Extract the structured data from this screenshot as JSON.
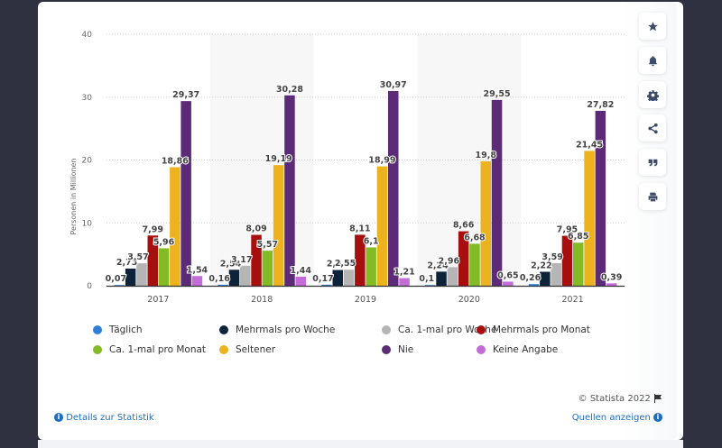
{
  "chart_data": {
    "type": "bar",
    "title": "",
    "xlabel": "",
    "ylabel": "Personen in Millionen",
    "ylim": [
      0,
      40
    ],
    "yticks": [
      0,
      10,
      20,
      30,
      40
    ],
    "grid": true,
    "legend_position": "bottom",
    "categories": [
      "2017",
      "2018",
      "2019",
      "2020",
      "2021"
    ],
    "series": [
      {
        "name": "Täglich",
        "color": "#2f7ed8",
        "values": [
          0.07,
          0.16,
          0.17,
          0.1,
          0.26
        ],
        "labels": [
          "0,07",
          "0,16",
          "0,17",
          "0,1",
          "0,26"
        ]
      },
      {
        "name": "Mehrmals pro Woche",
        "color": "#0d233a",
        "values": [
          2.73,
          2.54,
          2.5,
          2.24,
          2.22
        ],
        "labels": [
          "2,73",
          "2,54",
          "2,5",
          "2,24",
          "2,22"
        ]
      },
      {
        "name": "Ca. 1-mal pro Woche",
        "color": "#b5b5b5",
        "values": [
          3.57,
          3.17,
          2.55,
          2.96,
          3.59
        ],
        "labels": [
          "3,57",
          "3,17",
          "2,55",
          "2,96",
          "3,59"
        ]
      },
      {
        "name": "Mehrmals pro Monat",
        "color": "#a70f0f",
        "values": [
          7.99,
          8.09,
          8.11,
          8.66,
          7.95
        ],
        "labels": [
          "7,99",
          "8,09",
          "8,11",
          "8,66",
          "7,95"
        ]
      },
      {
        "name": "Ca. 1-mal pro Monat",
        "color": "#83bb24",
        "values": [
          5.96,
          5.57,
          6.1,
          6.68,
          6.85
        ],
        "labels": [
          "5,96",
          "5,57",
          "6,1",
          "6,68",
          "6,85"
        ]
      },
      {
        "name": "Seltener",
        "color": "#ecb31f",
        "values": [
          18.86,
          19.19,
          18.99,
          19.8,
          21.45
        ],
        "labels": [
          "18,86",
          "19,19",
          "18,99",
          "19,8",
          "21,45"
        ]
      },
      {
        "name": "Nie",
        "color": "#5c2a76",
        "values": [
          29.37,
          30.28,
          30.97,
          29.55,
          27.82
        ],
        "labels": [
          "29,37",
          "30,28",
          "30,97",
          "29,55",
          "27,82"
        ]
      },
      {
        "name": "Keine Angabe",
        "color": "#c36cd8",
        "values": [
          1.54,
          1.44,
          1.21,
          0.65,
          0.39
        ],
        "labels": [
          "1,54",
          "1,44",
          "1,21",
          "0,65",
          "0,39"
        ]
      }
    ]
  },
  "sidebar": {
    "buttons": [
      {
        "name": "favorite",
        "icon": "star-icon"
      },
      {
        "name": "notification",
        "icon": "bell-icon"
      },
      {
        "name": "settings",
        "icon": "gear-icon"
      },
      {
        "name": "share",
        "icon": "share-icon"
      },
      {
        "name": "cite",
        "icon": "quote-icon"
      },
      {
        "name": "print",
        "icon": "print-icon"
      }
    ]
  },
  "footer": {
    "copyright": "© Statista 2022",
    "details_link": "Details zur Statistik",
    "sources_link": "Quellen anzeigen"
  }
}
